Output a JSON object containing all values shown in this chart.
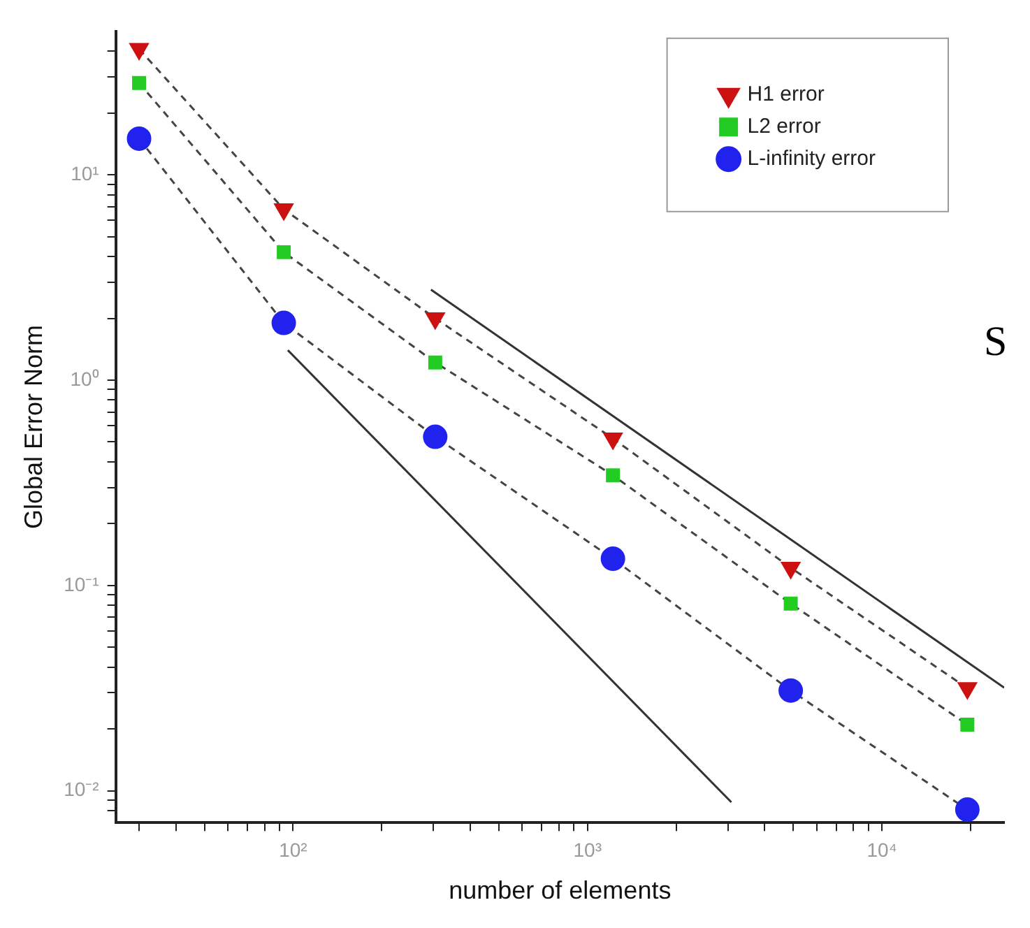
{
  "chart_data": {
    "type": "line",
    "xlabel": "number of elements",
    "ylabel": "Global Error Norm",
    "log": "xy",
    "grid": false,
    "legend": "top right",
    "line_style": "dashed",
    "annotations": [
      "S"
    ],
    "xlim": [
      25,
      26000
    ],
    "ylim": [
      0.007,
      50
    ],
    "xticks": [
      {
        "value": 30,
        "label": null
      },
      {
        "value": 40,
        "label": null
      },
      {
        "value": 50,
        "label": null
      },
      {
        "value": 60,
        "label": null
      },
      {
        "value": 70,
        "label": null
      },
      {
        "value": 80,
        "label": null
      },
      {
        "value": 90,
        "label": null
      },
      {
        "value": 100,
        "label": "10²"
      },
      {
        "value": 200,
        "label": null
      },
      {
        "value": 300,
        "label": null
      },
      {
        "value": 400,
        "label": null
      },
      {
        "value": 500,
        "label": null
      },
      {
        "value": 600,
        "label": null
      },
      {
        "value": 700,
        "label": null
      },
      {
        "value": 800,
        "label": null
      },
      {
        "value": 900,
        "label": null
      },
      {
        "value": 1000,
        "label": "10³"
      },
      {
        "value": 2000,
        "label": null
      },
      {
        "value": 3000,
        "label": null
      },
      {
        "value": 4000,
        "label": null
      },
      {
        "value": 5000,
        "label": null
      },
      {
        "value": 6000,
        "label": null
      },
      {
        "value": 7000,
        "label": null
      },
      {
        "value": 8000,
        "label": null
      },
      {
        "value": 9000,
        "label": null
      },
      {
        "value": 10000,
        "label": "10⁴"
      },
      {
        "value": 20000,
        "label": null
      }
    ],
    "yticks": [
      {
        "value": 0.008,
        "label": null
      },
      {
        "value": 0.009,
        "label": null
      },
      {
        "value": 0.01,
        "label": "10⁻²"
      },
      {
        "value": 0.02,
        "label": null
      },
      {
        "value": 0.03,
        "label": null
      },
      {
        "value": 0.04,
        "label": null
      },
      {
        "value": 0.05,
        "label": null
      },
      {
        "value": 0.06,
        "label": null
      },
      {
        "value": 0.07,
        "label": null
      },
      {
        "value": 0.08,
        "label": null
      },
      {
        "value": 0.09,
        "label": null
      },
      {
        "value": 0.1,
        "label": "10⁻¹"
      },
      {
        "value": 0.2,
        "label": null
      },
      {
        "value": 0.3,
        "label": null
      },
      {
        "value": 0.4,
        "label": null
      },
      {
        "value": 0.5,
        "label": null
      },
      {
        "value": 0.6,
        "label": null
      },
      {
        "value": 0.7,
        "label": null
      },
      {
        "value": 0.8,
        "label": null
      },
      {
        "value": 0.9,
        "label": null
      },
      {
        "value": 1,
        "label": "10⁰"
      },
      {
        "value": 2,
        "label": null
      },
      {
        "value": 3,
        "label": null
      },
      {
        "value": 4,
        "label": null
      },
      {
        "value": 5,
        "label": null
      },
      {
        "value": 6,
        "label": null
      },
      {
        "value": 7,
        "label": null
      },
      {
        "value": 8,
        "label": null
      },
      {
        "value": 9,
        "label": null
      },
      {
        "value": 10,
        "label": "10¹"
      },
      {
        "value": 20,
        "label": null
      },
      {
        "value": 30,
        "label": null
      },
      {
        "value": 40,
        "label": null
      }
    ],
    "series": [
      {
        "name": "H1 error",
        "color": "#cc1111",
        "marker": "triangle",
        "x": [
          30,
          93,
          304,
          1220,
          4900,
          19500
        ],
        "values": [
          41,
          6.8,
          2.0,
          0.52,
          0.122,
          0.0316
        ]
      },
      {
        "name": "L2 error",
        "color": "#22cc22",
        "marker": "square",
        "x": [
          30,
          93,
          304,
          1220,
          4900,
          19500
        ],
        "values": [
          28,
          4.2,
          1.22,
          0.344,
          0.0816,
          0.021
        ]
      },
      {
        "name": "L-infinity error",
        "color": "#2222ee",
        "marker": "circle",
        "x": [
          30,
          93,
          304,
          1220,
          4900,
          19500
        ],
        "values": [
          15,
          1.9,
          0.53,
          0.135,
          0.0308,
          0.0081
        ]
      },
      {
        "type": "line",
        "color": "#333333",
        "marker": "none",
        "line_style": "solid",
        "x": [
          96,
          3080
        ],
        "values": [
          1.4,
          0.0088
        ]
      },
      {
        "type": "line",
        "color": "#333333",
        "marker": "none",
        "line_style": "solid",
        "x": [
          294,
          26000
        ],
        "values": [
          2.76,
          0.0318
        ]
      }
    ]
  }
}
